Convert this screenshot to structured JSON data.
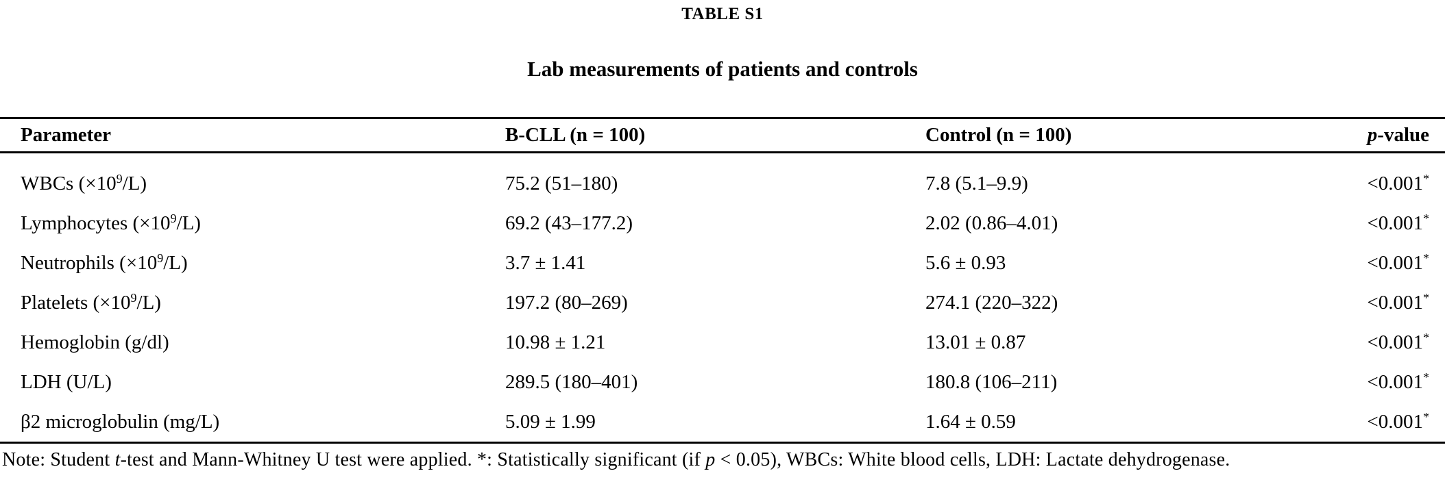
{
  "colors": {
    "background": "#ffffff",
    "text": "#000000",
    "rule": "#000000"
  },
  "table_label": "TABLE S1",
  "table_title": "Lab measurements of patients and controls",
  "table": {
    "columns": [
      {
        "name": "parameter",
        "parts": [
          {
            "t": "Parameter"
          }
        ]
      },
      {
        "name": "bcll",
        "parts": [
          {
            "t": "B-CLL (n = 100)"
          }
        ]
      },
      {
        "name": "control",
        "parts": [
          {
            "t": "Control (n = 100)"
          }
        ]
      },
      {
        "name": "pvalue",
        "parts": [
          {
            "t": "p",
            "i": true
          },
          {
            "t": "-value"
          }
        ]
      }
    ],
    "rows": [
      {
        "cells": [
          {
            "parts": [
              {
                "t": "WBCs (×10"
              },
              {
                "t": "9",
                "s": true
              },
              {
                "t": "/L)"
              }
            ]
          },
          {
            "parts": [
              {
                "t": "75.2 (51–180)"
              }
            ]
          },
          {
            "parts": [
              {
                "t": "7.8 (5.1–9.9)"
              }
            ]
          },
          {
            "parts": [
              {
                "t": "<0.001"
              },
              {
                "t": "*",
                "s": true
              }
            ]
          }
        ]
      },
      {
        "cells": [
          {
            "parts": [
              {
                "t": "Lymphocytes (×10"
              },
              {
                "t": "9",
                "s": true
              },
              {
                "t": "/L)"
              }
            ]
          },
          {
            "parts": [
              {
                "t": "69.2 (43–177.2)"
              }
            ]
          },
          {
            "parts": [
              {
                "t": "2.02 (0.86–4.01)"
              }
            ]
          },
          {
            "parts": [
              {
                "t": "<0.001"
              },
              {
                "t": "*",
                "s": true
              }
            ]
          }
        ]
      },
      {
        "cells": [
          {
            "parts": [
              {
                "t": "Neutrophils (×10"
              },
              {
                "t": "9",
                "s": true
              },
              {
                "t": "/L)"
              }
            ]
          },
          {
            "parts": [
              {
                "t": "3.7 ± 1.41"
              }
            ]
          },
          {
            "parts": [
              {
                "t": "5.6 ± 0.93"
              }
            ]
          },
          {
            "parts": [
              {
                "t": "<0.001"
              },
              {
                "t": "*",
                "s": true
              }
            ]
          }
        ]
      },
      {
        "cells": [
          {
            "parts": [
              {
                "t": "Platelets (×10"
              },
              {
                "t": "9",
                "s": true
              },
              {
                "t": "/L)"
              }
            ]
          },
          {
            "parts": [
              {
                "t": "197.2 (80–269)"
              }
            ]
          },
          {
            "parts": [
              {
                "t": "274.1 (220–322)"
              }
            ]
          },
          {
            "parts": [
              {
                "t": "<0.001"
              },
              {
                "t": "*",
                "s": true
              }
            ]
          }
        ]
      },
      {
        "cells": [
          {
            "parts": [
              {
                "t": "Hemoglobin (g/dl)"
              }
            ]
          },
          {
            "parts": [
              {
                "t": "10.98 ± 1.21"
              }
            ]
          },
          {
            "parts": [
              {
                "t": "13.01 ± 0.87"
              }
            ]
          },
          {
            "parts": [
              {
                "t": "<0.001"
              },
              {
                "t": "*",
                "s": true
              }
            ]
          }
        ]
      },
      {
        "cells": [
          {
            "parts": [
              {
                "t": "LDH (U/L)"
              }
            ]
          },
          {
            "parts": [
              {
                "t": "289.5 (180–401)"
              }
            ]
          },
          {
            "parts": [
              {
                "t": "180.8 (106–211)"
              }
            ]
          },
          {
            "parts": [
              {
                "t": "<0.001"
              },
              {
                "t": "*",
                "s": true
              }
            ]
          }
        ]
      },
      {
        "cells": [
          {
            "parts": [
              {
                "t": "β2 microglobulin (mg/L)"
              }
            ]
          },
          {
            "parts": [
              {
                "t": "5.09 ± 1.99"
              }
            ]
          },
          {
            "parts": [
              {
                "t": "1.64 ± 0.59"
              }
            ]
          },
          {
            "parts": [
              {
                "t": "<0.001"
              },
              {
                "t": "*",
                "s": true
              }
            ]
          }
        ]
      }
    ]
  },
  "footnote": {
    "parts": [
      {
        "t": "Note: Student "
      },
      {
        "t": "t",
        "i": true
      },
      {
        "t": "-test and Mann-Whitney U test were applied. *: Statistically significant (if "
      },
      {
        "t": "p",
        "i": true
      },
      {
        "t": " < 0.05), WBCs: White blood cells, LDH: Lactate dehydrogenase."
      }
    ]
  }
}
